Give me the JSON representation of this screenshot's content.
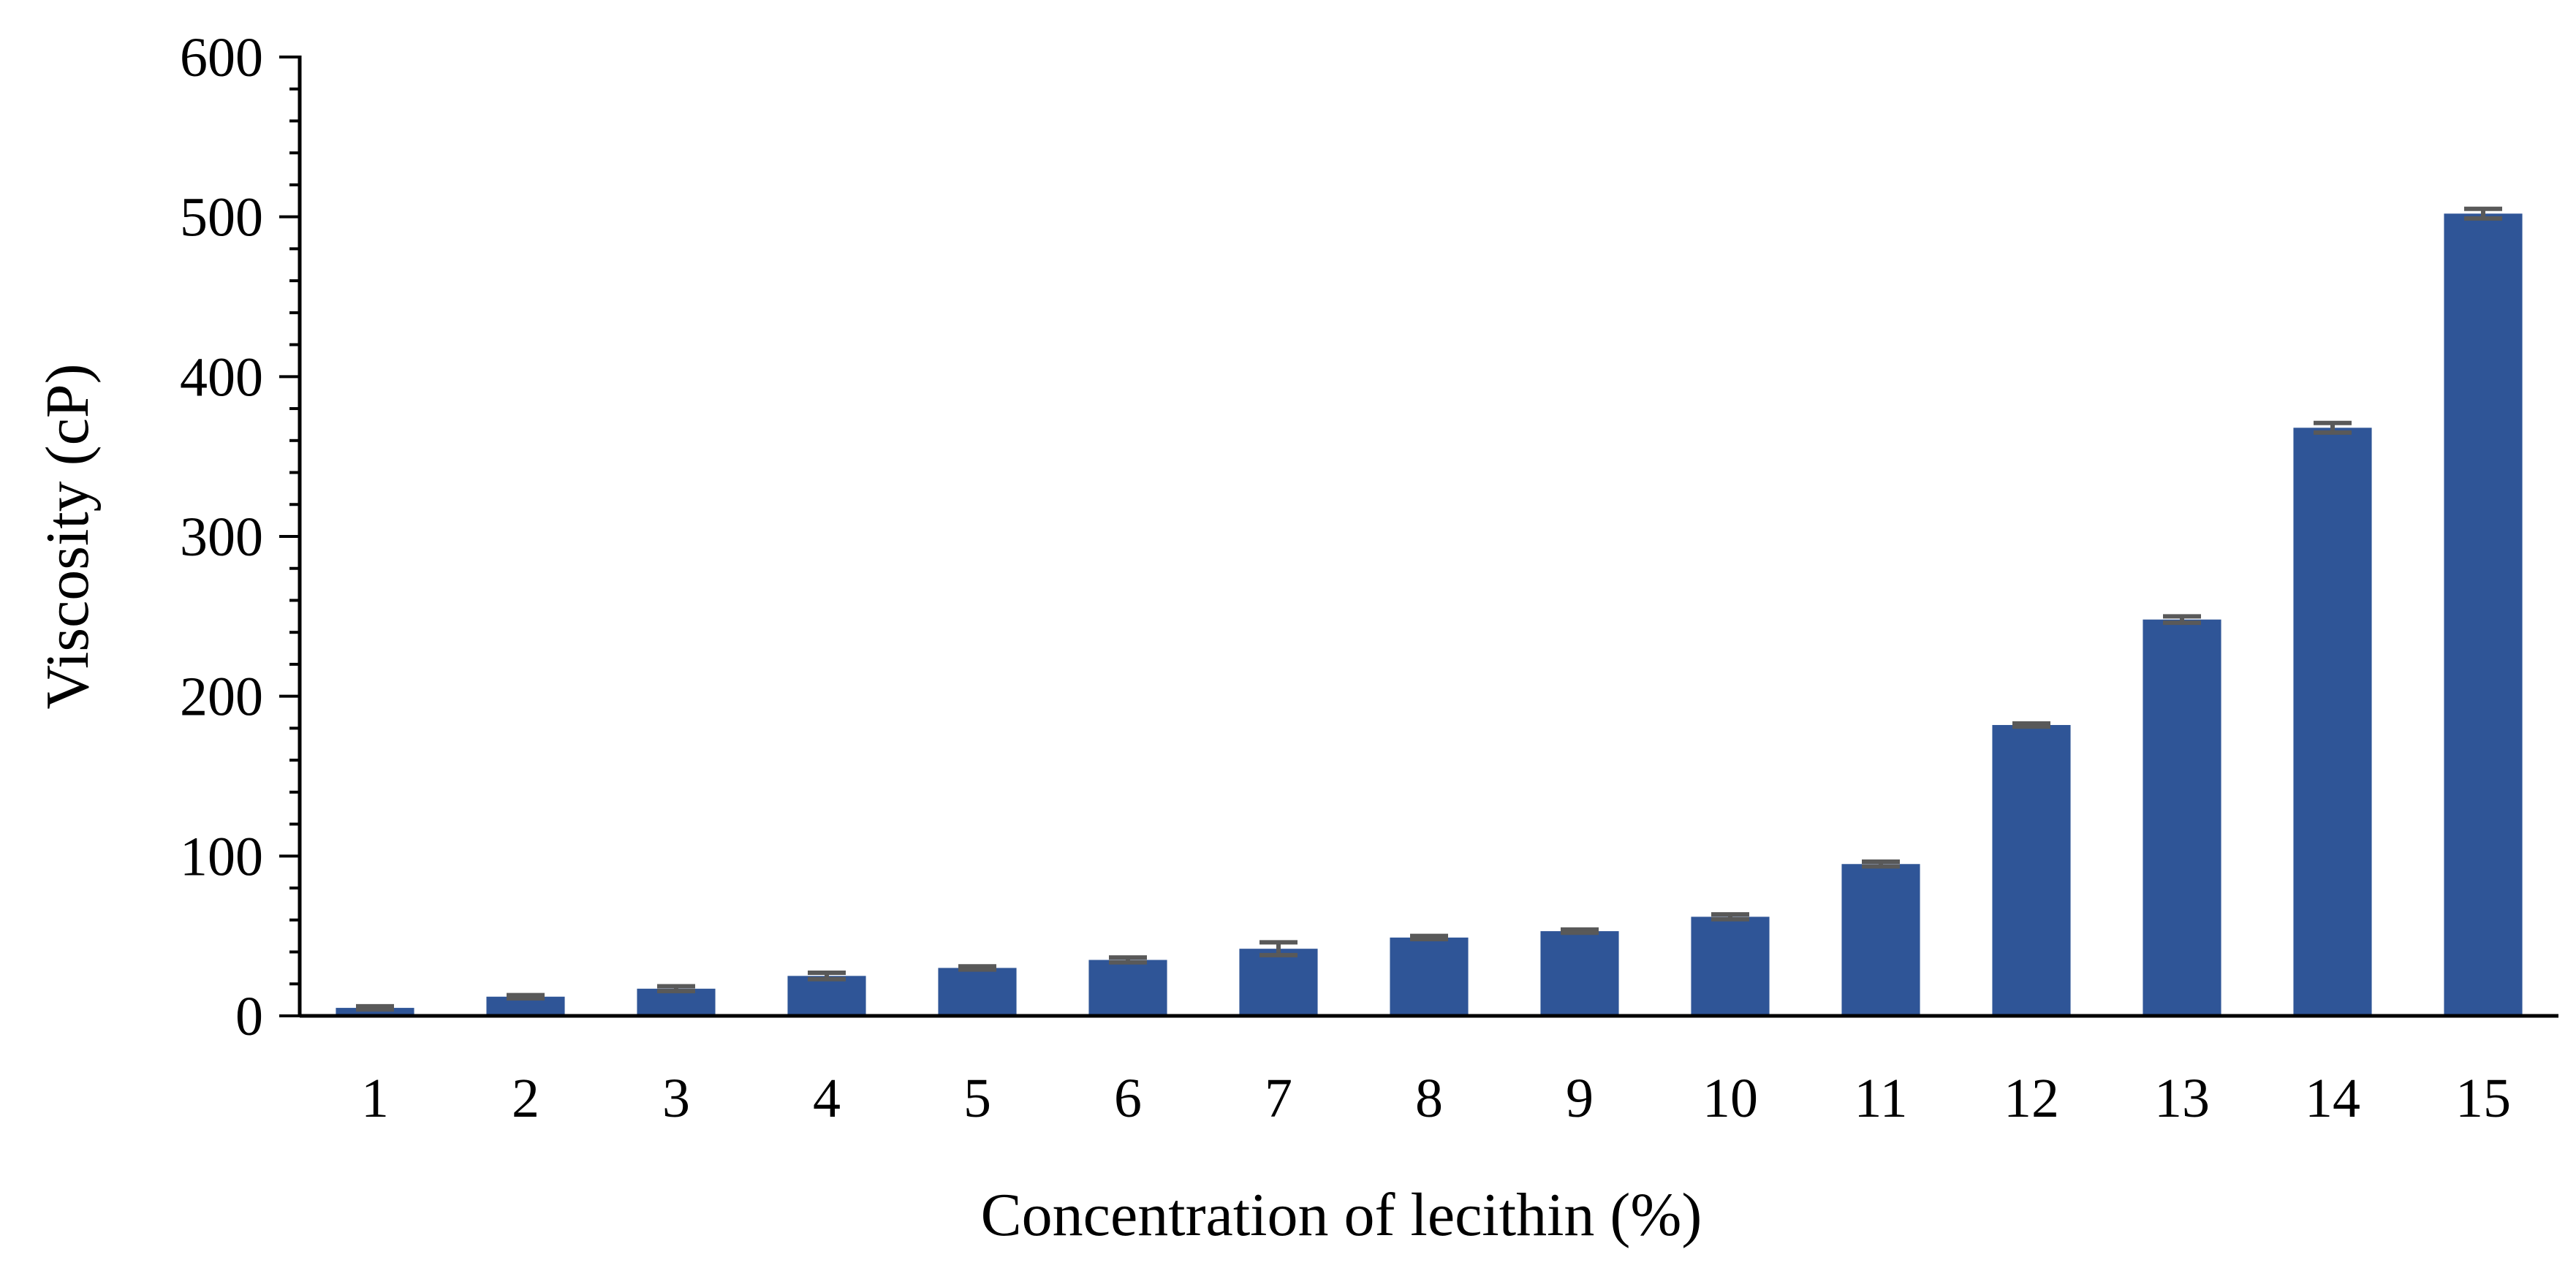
{
  "chart_data": {
    "type": "bar",
    "categories": [
      "1",
      "2",
      "3",
      "4",
      "5",
      "6",
      "7",
      "8",
      "9",
      "10",
      "11",
      "12",
      "13",
      "14",
      "15"
    ],
    "series": [
      {
        "values": [
          5,
          12,
          17,
          25,
          30,
          35,
          42,
          49,
          53,
          62,
          95,
          182,
          248,
          368,
          502
        ],
        "errors": [
          1,
          1,
          1.5,
          2,
          1,
          1.5,
          4,
          1,
          1,
          1.5,
          1.5,
          1,
          2,
          3,
          3
        ]
      }
    ],
    "xlabel": "Concentration of lecithin (%)",
    "ylabel": "Viscosity (cP)",
    "ylim": [
      0,
      600
    ],
    "yticks": [
      "0",
      "100",
      "200",
      "300",
      "400",
      "500",
      "600"
    ],
    "ytick_values": [
      0,
      100,
      200,
      300,
      400,
      500,
      600
    ],
    "minor_ticks_per_major": 5,
    "grid": false,
    "legend": "none",
    "colors": {
      "bar": "#2F5597",
      "error_bar": "#595959",
      "axis": "#000000"
    }
  }
}
